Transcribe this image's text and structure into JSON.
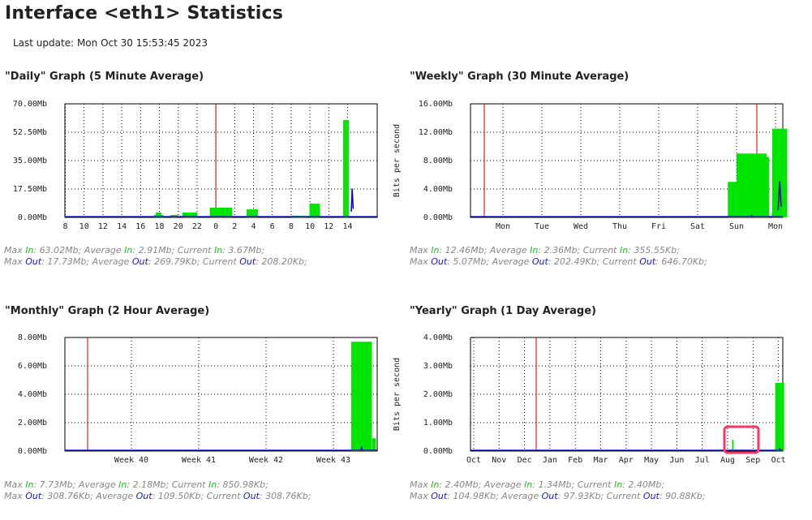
{
  "page": {
    "title": "Interface <eth1> Statistics",
    "last_update": "Last update: Mon Oct 30 15:53:45 2023"
  },
  "colors": {
    "in": "#00e400",
    "out": "#0000c0",
    "now_line": "#c00000",
    "highlight": "#ff3366",
    "grid": "#000000"
  },
  "ylabel_text": "Bits per second",
  "graphs": [
    {
      "id": "daily",
      "title": "\"Daily\" Graph (5 Minute Average)",
      "stats": {
        "max_in": "63.02Mb",
        "avg_in": "2.91Mb",
        "cur_in": "3.67Mb",
        "max_out": "17.73Mb",
        "avg_out": "269.79Kb",
        "cur_out": "208.20Kb"
      }
    },
    {
      "id": "weekly",
      "title": "\"Weekly\" Graph (30 Minute Average)",
      "stats": {
        "max_in": "12.46Mb",
        "avg_in": "2.36Mb",
        "cur_in": "355.55Kb",
        "max_out": "5.07Mb",
        "avg_out": "202.49Kb",
        "cur_out": "646.70Kb"
      }
    },
    {
      "id": "monthly",
      "title": "\"Monthly\" Graph (2 Hour Average)",
      "stats": {
        "max_in": "7.73Mb",
        "avg_in": "2.18Mb",
        "cur_in": "850.98Kb",
        "max_out": "308.76Kb",
        "avg_out": "109.50Kb",
        "cur_out": "308.76Kb"
      }
    },
    {
      "id": "yearly",
      "title": "\"Yearly\" Graph (1 Day Average)",
      "stats": {
        "max_in": "2.40Mb",
        "avg_in": "1.34Mb",
        "cur_in": "2.40Mb",
        "max_out": "104.98Kb",
        "avg_out": "97.93Kb",
        "cur_out": "90.88Kb"
      }
    }
  ],
  "chart_data": [
    {
      "id": "daily",
      "type": "area",
      "ylim": [
        0,
        70
      ],
      "yticks": [
        "0.00Mb",
        "17.50Mb",
        "35.00Mb",
        "52.50Mb",
        "70.00Mb"
      ],
      "xticks": [
        "8",
        "10",
        "12",
        "14",
        "16",
        "18",
        "20",
        "22",
        "0",
        "2",
        "4",
        "6",
        "8",
        "10",
        "12",
        "14"
      ],
      "now_marker": "0",
      "series": [
        {
          "name": "In",
          "segments": [
            [
              0.3,
              2.5,
              1.5
            ],
            [
              0.8,
              2.8,
              8.5
            ],
            [
              0.4,
              1.5,
              2
            ],
            [
              0.5,
              6,
              6
            ],
            [
              0.4,
              4,
              3
            ],
            [
              0.35,
              2,
              1.5
            ],
            [
              0.6,
              3,
              5
            ],
            [
              0.75,
              4,
              1
            ],
            [
              0.2,
              0.5,
              0.5
            ],
            [
              0.9,
              1.5,
              1
            ],
            [
              0.3,
              1.5,
              3
            ],
            [
              0.5,
              3,
              2
            ],
            [
              0.9,
              1.5,
              60
            ]
          ]
        },
        {
          "name": "Out",
          "segments": [
            [
              0.2,
              0.4,
              0.3
            ],
            [
              0.92,
              0.5,
              17.7
            ]
          ]
        }
      ]
    },
    {
      "id": "weekly",
      "type": "area",
      "ylim": [
        0,
        16
      ],
      "yticks": [
        "0.00Mb",
        "4.00Mb",
        "8.00Mb",
        "12.00Mb",
        "16.00Mb"
      ],
      "xticks": [
        "Mon",
        "Tue",
        "Wed",
        "Thu",
        "Fri",
        "Sat",
        "Sun",
        "Mon"
      ],
      "series": [
        {
          "name": "In",
          "segments": [
            [
              0.84,
              0.1,
              0.1
            ],
            [
              0.86,
              6,
              5
            ],
            [
              0.88,
              0.5,
              0.5
            ],
            [
              0.9,
              8,
              9
            ],
            [
              0.92,
              6,
              8.5
            ],
            [
              0.94,
              1,
              0.5
            ],
            [
              0.97,
              1,
              0.5
            ],
            [
              0.99,
              4,
              12.5
            ]
          ]
        },
        {
          "name": "Out",
          "segments": [
            [
              0.9,
              0.2,
              0.3
            ],
            [
              0.99,
              0.8,
              5.1
            ]
          ]
        }
      ]
    },
    {
      "id": "monthly",
      "type": "area",
      "ylim": [
        0,
        8
      ],
      "yticks": [
        "0.00Mb",
        "2.00Mb",
        "4.00Mb",
        "6.00Mb",
        "8.00Mb"
      ],
      "xticks": [
        "Week 40",
        "Week 41",
        "Week 42",
        "Week 43"
      ],
      "series": [
        {
          "name": "In",
          "segments": [
            [
              0.92,
              0.5,
              0.5
            ],
            [
              0.95,
              5.5,
              7.7
            ],
            [
              0.97,
              1,
              0.8
            ],
            [
              0.99,
              1,
              0.9
            ]
          ]
        },
        {
          "name": "Out",
          "segments": [
            [
              0.95,
              0.2,
              0.31
            ]
          ]
        }
      ]
    },
    {
      "id": "yearly",
      "type": "area",
      "ylim": [
        0,
        4
      ],
      "yticks": [
        "0.00Mb",
        "1.00Mb",
        "2.00Mb",
        "3.00Mb",
        "4.00Mb"
      ],
      "xticks": [
        "Oct",
        "Nov",
        "Dec",
        "Jan",
        "Feb",
        "Mar",
        "Apr",
        "May",
        "Jun",
        "Jul",
        "Aug",
        "Sep",
        "Oct"
      ],
      "highlight": "Aug-Sep",
      "series": [
        {
          "name": "In",
          "segments": [
            [
              0.84,
              0.4,
              0.4
            ],
            [
              0.99,
              2.4,
              2.4
            ]
          ]
        },
        {
          "name": "Out",
          "segments": [
            [
              0.99,
              0.1,
              0.1
            ]
          ]
        }
      ]
    }
  ]
}
